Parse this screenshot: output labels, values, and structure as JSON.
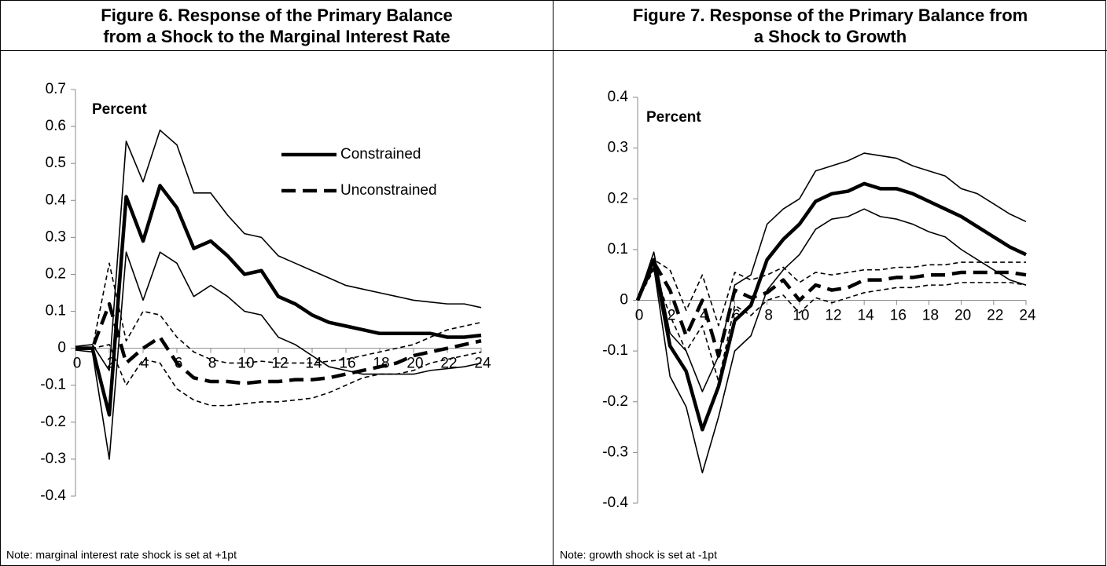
{
  "chart_data": [
    {
      "type": "line",
      "title": [
        "Figure 6. Response of the Primary Balance",
        "from a Shock to the Marginal Interest Rate"
      ],
      "annotation": "Percent",
      "note": "Note: marginal interest rate shock is set at +1pt",
      "x": [
        0,
        1,
        2,
        3,
        4,
        5,
        6,
        7,
        8,
        9,
        10,
        11,
        12,
        13,
        14,
        15,
        16,
        17,
        18,
        19,
        20,
        21,
        22,
        23,
        24
      ],
      "xlim": [
        0,
        24
      ],
      "xticks": [
        0,
        2,
        4,
        6,
        8,
        10,
        12,
        14,
        16,
        18,
        20,
        22,
        24
      ],
      "ylim": [
        -0.4,
        0.7
      ],
      "yticks": [
        -0.4,
        -0.3,
        -0.2,
        -0.1,
        0,
        0.1,
        0.2,
        0.3,
        0.4,
        0.5,
        0.6,
        0.7
      ],
      "series": [
        {
          "color": "#000000",
          "style": "solid",
          "weight": "thin",
          "values": [
            0.005,
            0.01,
            -0.06,
            0.56,
            0.45,
            0.59,
            0.55,
            0.42,
            0.42,
            0.36,
            0.31,
            0.3,
            0.25,
            0.23,
            0.21,
            0.19,
            0.17,
            0.16,
            0.15,
            0.14,
            0.13,
            0.125,
            0.12,
            0.12,
            0.11
          ]
        },
        {
          "color": "#000000",
          "style": "solid",
          "weight": "thin",
          "values": [
            -0.005,
            -0.01,
            -0.3,
            0.26,
            0.13,
            0.26,
            0.23,
            0.14,
            0.17,
            0.14,
            0.1,
            0.09,
            0.03,
            0.01,
            -0.02,
            -0.05,
            -0.06,
            -0.07,
            -0.07,
            -0.07,
            -0.07,
            -0.06,
            -0.055,
            -0.05,
            -0.04
          ]
        },
        {
          "color": "#000000",
          "style": "dashed",
          "weight": "thin",
          "values": [
            0,
            0,
            0.23,
            0.02,
            0.1,
            0.09,
            0.03,
            -0.01,
            -0.03,
            -0.04,
            -0.04,
            -0.035,
            -0.04,
            -0.04,
            -0.04,
            -0.035,
            -0.03,
            -0.02,
            -0.01,
            0,
            0.01,
            0.03,
            0.05,
            0.06,
            0.07
          ]
        },
        {
          "color": "#000000",
          "style": "dashed",
          "weight": "thin",
          "values": [
            0,
            0,
            0.01,
            -0.1,
            -0.03,
            -0.04,
            -0.11,
            -0.14,
            -0.155,
            -0.155,
            -0.15,
            -0.145,
            -0.145,
            -0.14,
            -0.135,
            -0.12,
            -0.1,
            -0.08,
            -0.07,
            -0.07,
            -0.06,
            -0.04,
            -0.03,
            -0.02,
            -0.01
          ]
        },
        {
          "name": "Constrained",
          "color": "#000000",
          "style": "solid",
          "weight": "thick",
          "values": [
            0,
            0,
            -0.18,
            0.41,
            0.29,
            0.44,
            0.38,
            0.27,
            0.29,
            0.25,
            0.2,
            0.21,
            0.14,
            0.12,
            0.09,
            0.07,
            0.06,
            0.05,
            0.04,
            0.04,
            0.04,
            0.04,
            0.03,
            0.03,
            0.035
          ]
        },
        {
          "name": "Unconstrained",
          "color": "#000000",
          "style": "dashed",
          "weight": "thick",
          "values": [
            0,
            0,
            0.12,
            -0.04,
            0,
            0.03,
            -0.04,
            -0.08,
            -0.09,
            -0.09,
            -0.095,
            -0.09,
            -0.09,
            -0.085,
            -0.085,
            -0.08,
            -0.07,
            -0.06,
            -0.05,
            -0.04,
            -0.02,
            -0.01,
            0,
            0.01,
            0.02
          ]
        }
      ]
    },
    {
      "type": "line",
      "title": [
        "Figure 7. Response of the Primary Balance from",
        "a Shock to Growth"
      ],
      "annotation": "Percent",
      "note": "Note: growth shock is set at -1pt",
      "x": [
        0,
        1,
        2,
        3,
        4,
        5,
        6,
        7,
        8,
        9,
        10,
        11,
        12,
        13,
        14,
        15,
        16,
        17,
        18,
        19,
        20,
        21,
        22,
        23,
        24
      ],
      "xlim": [
        0,
        24
      ],
      "xticks": [
        0,
        2,
        4,
        6,
        8,
        10,
        12,
        14,
        16,
        18,
        20,
        22,
        24
      ],
      "ylim": [
        -0.4,
        0.4
      ],
      "yticks": [
        -0.4,
        -0.3,
        -0.2,
        -0.1,
        0,
        0.1,
        0.2,
        0.3,
        0.4
      ],
      "series": [
        {
          "color": "#000000",
          "style": "solid",
          "weight": "thin",
          "values": [
            0,
            0.095,
            -0.065,
            -0.1,
            -0.18,
            -0.11,
            0.03,
            0.05,
            0.15,
            0.18,
            0.2,
            0.255,
            0.265,
            0.275,
            0.29,
            0.285,
            0.28,
            0.265,
            0.255,
            0.245,
            0.22,
            0.21,
            0.19,
            0.17,
            0.155
          ]
        },
        {
          "color": "#000000",
          "style": "solid",
          "weight": "thin",
          "values": [
            0,
            0.065,
            -0.15,
            -0.21,
            -0.34,
            -0.23,
            -0.1,
            -0.07,
            0.02,
            0.06,
            0.09,
            0.14,
            0.16,
            0.165,
            0.18,
            0.165,
            0.16,
            0.15,
            0.135,
            0.125,
            0.1,
            0.08,
            0.06,
            0.04,
            0.03
          ]
        },
        {
          "color": "#000000",
          "style": "dashed",
          "weight": "thin",
          "values": [
            0,
            0.08,
            0.06,
            -0.02,
            0.05,
            -0.05,
            0.055,
            0.04,
            0.05,
            0.065,
            0.035,
            0.055,
            0.05,
            0.055,
            0.06,
            0.06,
            0.065,
            0.065,
            0.07,
            0.07,
            0.075,
            0.075,
            0.075,
            0.075,
            0.075
          ]
        },
        {
          "color": "#000000",
          "style": "dashed",
          "weight": "thin",
          "values": [
            0,
            0.06,
            -0.03,
            -0.1,
            -0.05,
            -0.16,
            -0.01,
            -0.03,
            0,
            0.01,
            -0.025,
            0.005,
            -0.005,
            0.005,
            0.015,
            0.02,
            0.025,
            0.025,
            0.03,
            0.03,
            0.035,
            0.035,
            0.035,
            0.035,
            0.03
          ]
        },
        {
          "color": "#000000",
          "style": "solid",
          "weight": "thick",
          "values": [
            0,
            0.08,
            -0.09,
            -0.14,
            -0.255,
            -0.17,
            -0.04,
            -0.01,
            0.08,
            0.12,
            0.15,
            0.195,
            0.21,
            0.215,
            0.23,
            0.22,
            0.22,
            0.21,
            0.195,
            0.18,
            0.165,
            0.145,
            0.125,
            0.105,
            0.09
          ]
        },
        {
          "color": "#000000",
          "style": "dashed",
          "weight": "thick",
          "values": [
            0,
            0.075,
            0.02,
            -0.07,
            0,
            -0.11,
            0.02,
            0.005,
            0.015,
            0.04,
            0,
            0.03,
            0.02,
            0.025,
            0.04,
            0.04,
            0.045,
            0.045,
            0.05,
            0.05,
            0.055,
            0.055,
            0.055,
            0.055,
            0.05
          ]
        }
      ]
    }
  ]
}
